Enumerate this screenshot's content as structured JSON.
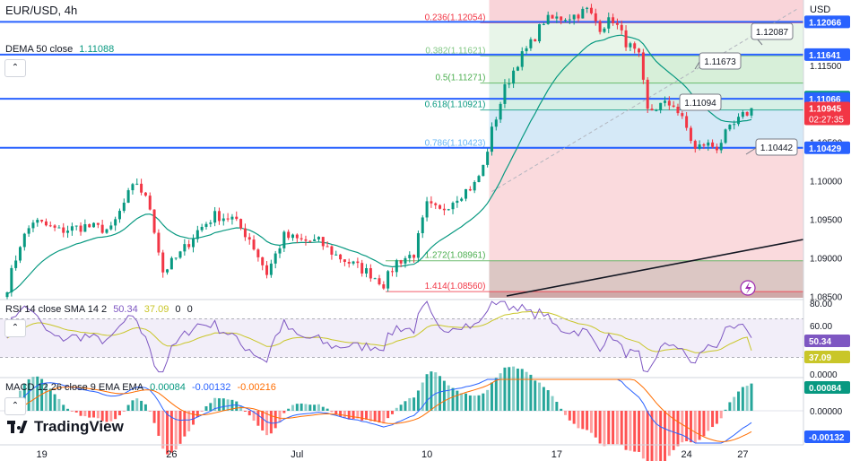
{
  "header": {
    "symbol": "EUR/USD, 4h",
    "currency": "USD"
  },
  "dema": {
    "label": "DEMA 50 close",
    "value": "1.11088",
    "color": "#089981"
  },
  "rsi": {
    "label": "RSI 14 close SMA 14 2",
    "v1": "50.34",
    "v2": "37.09",
    "v3": "0",
    "v4": "0",
    "color_rsi": "#7e57c2",
    "color_sma": "#c9c629"
  },
  "macd": {
    "label": "MACD 12 26 close 9 EMA EMA",
    "v1": "0.00084",
    "v2": "-0.00132",
    "v3": "-0.00216",
    "color_macd": "#2962ff",
    "color_signal": "#ff6d00"
  },
  "logo": {
    "text": "TradingView"
  },
  "chart_data": {
    "type": "candlestick",
    "title": "EUR/USD, 4h",
    "x_ticks": [
      {
        "label": "19",
        "bar": 8
      },
      {
        "label": "26",
        "bar": 38
      },
      {
        "label": "Jul",
        "bar": 67
      },
      {
        "label": "10",
        "bar": 97
      },
      {
        "label": "17",
        "bar": 127
      },
      {
        "label": "24",
        "bar": 157
      },
      {
        "label": "27",
        "bar": 170
      }
    ],
    "bar_count": 173,
    "price_ylim": [
      1.0848,
      1.1235
    ],
    "price_ticks": [
      "1.11500",
      "1.10500",
      "1.10000",
      "1.09500",
      "1.09000",
      "1.08500"
    ],
    "price_tags": [
      {
        "text": "1.12066",
        "price": 1.12066,
        "bg": "#2962ff",
        "fg": "#ffffff"
      },
      {
        "text": "1.11641",
        "price": 1.11641,
        "bg": "#2962ff",
        "fg": "#ffffff"
      },
      {
        "text": "1.11088",
        "price": 1.11088,
        "bg": "#089981",
        "fg": "#ffffff"
      },
      {
        "text": "1.11066",
        "price": 1.11066,
        "bg": "#2962ff",
        "fg": "#ffffff"
      },
      {
        "text": "1.10945",
        "price": 1.10945,
        "bg": "#f23645",
        "fg": "#ffffff",
        "sub": "02:27:35"
      },
      {
        "text": "1.10429",
        "price": 1.10429,
        "bg": "#2962ff",
        "fg": "#ffffff"
      }
    ],
    "horizontal_lines": [
      1.12066,
      1.11641,
      1.11066,
      1.10429
    ],
    "fib_levels": [
      {
        "label": "0.236(1.12054)",
        "price": 1.12054,
        "color": "#f23645"
      },
      {
        "label": "0.382(1.11621)",
        "price": 1.11621,
        "color": "#81c784"
      },
      {
        "label": "0.5(1.11271)",
        "price": 1.11271,
        "color": "#4caf50"
      },
      {
        "label": "0.618(1.10921)",
        "price": 1.10921,
        "color": "#089981"
      },
      {
        "label": "0.786(1.10423)",
        "price": 1.10423,
        "color": "#64b5f6"
      },
      {
        "label": "1.272(1.08961)",
        "price": 1.08961,
        "color": "#4caf50"
      },
      {
        "label": "1.414(1.08560)",
        "price": 1.0856,
        "color": "#f23645"
      }
    ],
    "callouts": [
      {
        "text": "1.12087",
        "price": 1.12087
      },
      {
        "text": "1.11673",
        "price": 1.11673
      },
      {
        "text": "1.11094",
        "price": 1.11094
      },
      {
        "text": "1.10442",
        "price": 1.10442
      }
    ],
    "rsi_ticks": [
      "80.00",
      "60.00",
      "0.0000"
    ],
    "rsi_tags": [
      {
        "text": "50.34",
        "value": 50.34,
        "bg": "#7e57c2"
      },
      {
        "text": "37.09",
        "value": 37.09,
        "bg": "#c9c629"
      }
    ],
    "macd_ticks": [
      "0.00000"
    ],
    "macd_tags": [
      {
        "text": "0.00084",
        "value": 0.00084,
        "bg": "#089981"
      },
      {
        "text": "-0.00132",
        "value": -0.00132,
        "bg": "#2962ff"
      }
    ]
  }
}
